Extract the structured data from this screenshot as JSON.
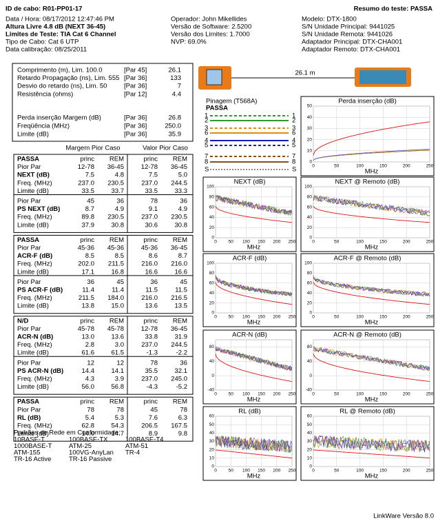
{
  "header": {
    "title": "ID de cabo: R01-PP01-17",
    "summary": "Resumo do teste: PASSA",
    "col1": [
      "Data / Hora: 08/17/2012 12:47:46 PM",
      "Altura Livre 4.8 dB (NEXT 36-45)",
      "Limites de Teste: TIA Cat 6 Channel",
      "Tipo de Cabo: Cat 6 UTP",
      "Data calibração: 08/25/2011"
    ],
    "col2": [
      "Operador: John Mikellides",
      "Versão de Software: 2.5200",
      "Versão dos Limites: 1.7000",
      "NVP: 69.0%"
    ],
    "col3": [
      "Modelo: DTX-1800",
      "S/N Unidade Principal: 9441025",
      "S/N Unidade Remota: 9441026",
      "Adaptador Principal: DTX-CHA001",
      "Adaptador Remoto: DTX-CHA001"
    ]
  },
  "summary_rows": [
    [
      "Comprimento (m), Lim. 100.0",
      "[Par 45]",
      "26.1"
    ],
    [
      "Retardo Propagação (ns), Lim. 555",
      "[Par 36]",
      "133"
    ],
    [
      "Desvio do retardo (ns), Lim. 50",
      "[Par 36]",
      "7"
    ],
    [
      "Resistência (ohms)",
      "[Par 12]",
      "4.4"
    ],
    [
      "Perda inserção Margem (dB)",
      "[Par 36]",
      "26.8"
    ],
    [
      "Freqüência (MHz)",
      "[Par 36]",
      "250.0"
    ],
    [
      "Limite (dB)",
      "[Par 36]",
      "35.9"
    ]
  ],
  "cable_length": "26.1 m",
  "table_headings": [
    "Margem Pior Caso",
    "Valor Pior Caso"
  ],
  "groups": [
    {
      "header": [
        "PASSA",
        "princ",
        "REM",
        "princ",
        "REM"
      ],
      "sections": [
        [
          [
            "Pior Par",
            "12-78",
            "36-45",
            "12-78",
            "36-45"
          ],
          [
            "NEXT (dB)",
            "7.5",
            "4.8",
            "7.5",
            "5.0"
          ],
          [
            "Freq. (MHz)",
            "237.0",
            "230.5",
            "237.0",
            "244.5"
          ],
          [
            "Limite (dB)",
            "33.5",
            "33.7",
            "33.5",
            "33.3"
          ]
        ],
        [
          [
            "Pior Par",
            "45",
            "36",
            "78",
            "36"
          ],
          [
            "PS NEXT (dB)",
            "8.7",
            "4.9",
            "9.1",
            "4.9"
          ],
          [
            "Freq. (MHz)",
            "89.8",
            "230.5",
            "237.0",
            "230.5"
          ],
          [
            "Limite (dB)",
            "37.9",
            "30.8",
            "30.6",
            "30.8"
          ]
        ]
      ]
    },
    {
      "header": [
        "PASSA",
        "princ",
        "REM",
        "princ",
        "REM"
      ],
      "sections": [
        [
          [
            "Pior Par",
            "45-36",
            "45-36",
            "45-36",
            "36-45"
          ],
          [
            "ACR-F (dB)",
            "8.5",
            "8.5",
            "8.6",
            "8.7"
          ],
          [
            "Freq. (MHz)",
            "202.0",
            "211.5",
            "216.0",
            "216.0"
          ],
          [
            "Limite (dB)",
            "17.1",
            "16.8",
            "16.6",
            "16.6"
          ]
        ],
        [
          [
            "Pior Par",
            "36",
            "45",
            "36",
            "45"
          ],
          [
            "PS ACR-F (dB)",
            "11.4",
            "11.4",
            "11.5",
            "11.5"
          ],
          [
            "Freq. (MHz)",
            "211.5",
            "184.0",
            "216.0",
            "216.5"
          ],
          [
            "Limite (dB)",
            "13.8",
            "15.0",
            "13.6",
            "13.5"
          ]
        ]
      ]
    },
    {
      "header": [
        "N/D",
        "princ",
        "REM",
        "princ",
        "REM"
      ],
      "sections": [
        [
          [
            "Pior Par",
            "45-78",
            "45-78",
            "12-78",
            "36-45"
          ],
          [
            "ACR-N (dB)",
            "13.0",
            "13.6",
            "33.8",
            "31.9"
          ],
          [
            "Freq. (MHz)",
            "2.8",
            "3.0",
            "237.0",
            "244.5"
          ],
          [
            "Limite (dB)",
            "61.6",
            "61.5",
            "-1.3",
            "-2.2"
          ]
        ],
        [
          [
            "Pior Par",
            "12",
            "12",
            "78",
            "36"
          ],
          [
            "PS ACR-N (dB)",
            "14.4",
            "14.1",
            "35.5",
            "32.1"
          ],
          [
            "Freq. (MHz)",
            "4.3",
            "3.9",
            "237.0",
            "245.0"
          ],
          [
            "Limite (dB)",
            "56.0",
            "56.8",
            "-4.3",
            "-5.2"
          ]
        ]
      ]
    },
    {
      "header": [
        "PASSA",
        "princ",
        "REM",
        "princ",
        "REM"
      ],
      "sections": [
        [
          [
            "Pior Par",
            "78",
            "78",
            "45",
            "78"
          ],
          [
            "RL (dB)",
            "5.4",
            "5.3",
            "7.6",
            "6.3"
          ],
          [
            "Freq. (MHz)",
            "62.8",
            "54.3",
            "206.5",
            "167.5"
          ],
          [
            "Limite (dB)",
            "14.0",
            "14.7",
            "8.9",
            "9.8"
          ]
        ]
      ]
    }
  ],
  "wiremap": {
    "title": "Pinagem (T568A)",
    "status": "PASSA",
    "pins": [
      "1",
      "2",
      "3",
      "6",
      "4",
      "5",
      "7",
      "8",
      "S"
    ]
  },
  "charts": [
    {
      "title": "Perda inserção (dB)",
      "xlabel": "MHz",
      "xlim": [
        0,
        250
      ],
      "xticks": [
        0,
        50,
        100,
        150,
        200,
        250
      ],
      "ylim": [
        0,
        50
      ],
      "yticks": [
        0,
        10,
        20,
        30,
        40,
        50
      ]
    },
    {
      "title": "NEXT (dB)",
      "xlabel": "MHz",
      "xlim": [
        0,
        250
      ],
      "xticks": [
        0,
        50,
        100,
        150,
        200,
        250
      ],
      "ylim": [
        0,
        100
      ],
      "yticks": [
        0,
        20,
        40,
        60,
        80,
        100
      ]
    },
    {
      "title": "NEXT @ Remoto (dB)",
      "xlabel": "MHz",
      "xlim": [
        0,
        250
      ],
      "xticks": [
        0,
        50,
        100,
        150,
        200,
        250
      ],
      "ylim": [
        0,
        100
      ],
      "yticks": [
        0,
        20,
        40,
        60,
        80,
        100
      ]
    },
    {
      "title": "ACR-F (dB)",
      "xlabel": "MHz",
      "xlim": [
        0,
        250
      ],
      "xticks": [
        0,
        50,
        100,
        150,
        200,
        250
      ],
      "ylim": [
        0,
        100
      ],
      "yticks": [
        0,
        20,
        40,
        60,
        80,
        100
      ]
    },
    {
      "title": "ACR-F @ Remoto (dB)",
      "xlabel": "MHz",
      "xlim": [
        0,
        250
      ],
      "xticks": [
        0,
        50,
        100,
        150,
        200,
        250
      ],
      "ylim": [
        0,
        100
      ],
      "yticks": [
        0,
        20,
        40,
        60,
        80,
        100
      ]
    },
    {
      "title": "ACR-N (dB)",
      "xlabel": "MHz",
      "xlim": [
        0,
        250
      ],
      "xticks": [
        0,
        50,
        100,
        150,
        200,
        250
      ],
      "ylim": [
        -40,
        100
      ],
      "yticks": [
        -40,
        0,
        40,
        80
      ]
    },
    {
      "title": "ACR-N @ Remoto (dB)",
      "xlabel": "MHz",
      "xlim": [
        0,
        250
      ],
      "xticks": [
        0,
        50,
        100,
        150,
        200,
        250
      ],
      "ylim": [
        -40,
        100
      ],
      "yticks": [
        -40,
        0,
        40,
        80
      ]
    },
    {
      "title": "RL (dB)",
      "xlabel": "MHz",
      "xlim": [
        0,
        250
      ],
      "xticks": [
        0,
        50,
        100,
        150,
        200,
        250
      ],
      "ylim": [
        0,
        60
      ],
      "yticks": [
        0,
        10,
        20,
        30,
        40,
        50,
        60
      ]
    },
    {
      "title": "RL @ Remoto (dB)",
      "xlabel": "MHz",
      "xlim": [
        0,
        250
      ],
      "xticks": [
        0,
        50,
        100,
        150,
        200,
        250
      ],
      "ylim": [
        0,
        60
      ],
      "yticks": [
        0,
        10,
        20,
        30,
        40,
        50,
        60
      ]
    }
  ],
  "standards": {
    "title": "Padrões de Rede em Conformidade:",
    "rows": [
      [
        "10BASE-T",
        "100BASE-TX",
        "100BASE-T4"
      ],
      [
        "1000BASE-T",
        "ATM-25",
        "ATM-51"
      ],
      [
        "ATM-155",
        "100VG-AnyLan",
        "TR-4"
      ],
      [
        "TR-16 Active",
        "TR-16 Passive"
      ]
    ]
  },
  "footer": "LinkWare Versão 8.0"
}
